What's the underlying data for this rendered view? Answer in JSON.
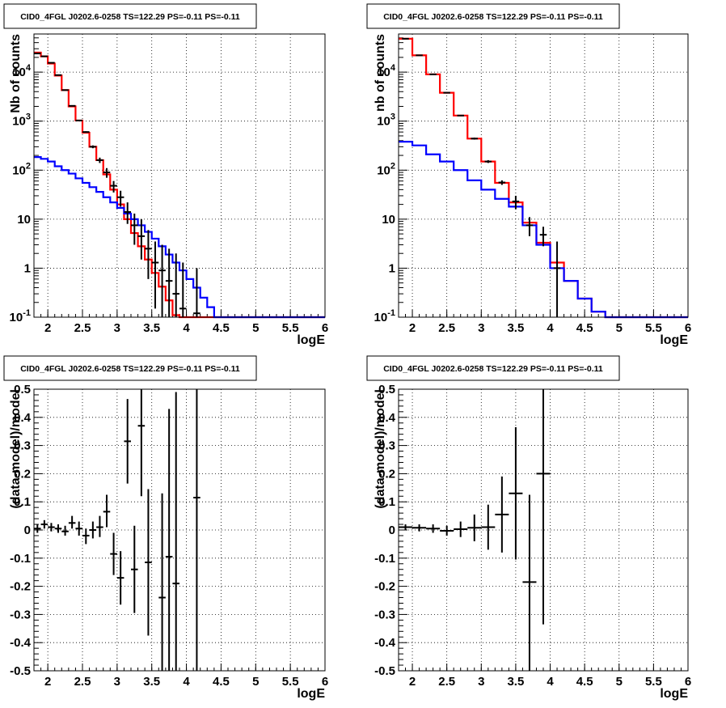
{
  "chart_data": [
    {
      "type": "line",
      "title": "CID0_4FGL J0202.6-0258 TS=122.29 PS=-0.11 PS=-0.11",
      "xlabel": "logE",
      "ylabel": "Nb of counts",
      "xlim": [
        1.8,
        6.0
      ],
      "ylim": [
        0.1,
        60000
      ],
      "yscale": "log",
      "grid": true,
      "x_ticks": [
        "2",
        "2.5",
        "3",
        "3.5",
        "4",
        "4.5",
        "5",
        "5.5",
        "6"
      ],
      "y_ticks": [
        "10^-1",
        "1",
        "10",
        "10^2",
        "10^3",
        "10^4"
      ],
      "bin_edges": [
        1.8,
        1.9,
        2.0,
        2.1,
        2.2,
        2.3,
        2.4,
        2.5,
        2.6,
        2.7,
        2.8,
        2.9,
        3.0,
        3.1,
        3.2,
        3.3,
        3.4,
        3.5,
        3.6,
        3.7,
        3.8,
        3.9,
        4.0,
        4.1,
        4.2,
        4.3,
        4.4,
        4.5,
        4.6,
        4.7,
        4.8,
        4.9,
        5.0,
        5.1,
        5.2,
        5.3,
        5.4,
        5.5,
        5.6,
        5.7,
        5.8,
        5.9,
        6.0
      ],
      "series": [
        {
          "color": "#ff0000",
          "style": "step",
          "values": [
            25000,
            21000,
            15000,
            8500,
            4300,
            2000,
            1030,
            580,
            300,
            160,
            82,
            40,
            20,
            10,
            5.2,
            2.8,
            1.5,
            0.8,
            0.42,
            0.22,
            0.11,
            0.1,
            0.1,
            0.1,
            0.1,
            0.1,
            0.1,
            0.1,
            0.1,
            0.1,
            0.1,
            0.1,
            0.1,
            0.1,
            0.1,
            0.1,
            0.1,
            0.1,
            0.1,
            0.1,
            0.1,
            0.1
          ]
        },
        {
          "color": "#0000ff",
          "style": "step",
          "values": [
            185,
            170,
            150,
            120,
            100,
            85,
            68,
            55,
            45,
            36,
            28,
            22,
            17,
            13,
            10,
            7.5,
            5.5,
            4.0,
            2.8,
            1.9,
            1.3,
            0.9,
            0.6,
            0.4,
            0.25,
            0.16,
            0.1,
            0.1,
            0.1,
            0.1,
            0.1,
            0.1,
            0.1,
            0.1,
            0.1,
            0.1,
            0.1,
            0.1,
            0.1,
            0.1,
            0.1,
            0.1
          ]
        }
      ],
      "points": {
        "color": "#000000",
        "x": [
          1.85,
          1.95,
          2.05,
          2.15,
          2.25,
          2.35,
          2.45,
          2.55,
          2.65,
          2.75,
          2.85,
          2.95,
          3.05,
          3.15,
          3.25,
          3.35,
          3.45,
          3.55,
          3.65,
          3.75,
          3.85,
          3.95,
          4.15
        ],
        "y": [
          24000,
          21000,
          15500,
          8700,
          4300,
          2050,
          1030,
          600,
          300,
          160,
          90,
          48,
          28,
          14,
          7.5,
          4.5,
          2.5,
          1.3,
          0.9,
          0.55,
          0.3,
          0.15,
          0.12
        ],
        "ylo": [
          23700,
          20700,
          15300,
          8600,
          4250,
          2000,
          1000,
          580,
          280,
          140,
          70,
          35,
          18,
          8,
          3,
          1.5,
          0.6,
          0.15,
          0.1,
          0.1,
          0.1,
          0.1,
          0.1
        ],
        "yhi": [
          24300,
          21300,
          15700,
          8800,
          4350,
          2100,
          1060,
          620,
          320,
          180,
          110,
          60,
          38,
          22,
          13,
          10,
          6,
          3.5,
          3,
          2.5,
          2,
          1.3,
          1.0
        ]
      }
    },
    {
      "type": "line",
      "title": "CID0_4FGL J0202.6-0258 TS=122.29 PS=-0.11 PS=-0.11",
      "xlabel": "logE",
      "ylabel": "nb of counts",
      "xlim": [
        1.8,
        6.0
      ],
      "ylim": [
        0.1,
        60000
      ],
      "yscale": "log",
      "grid": true,
      "x_ticks": [
        "2",
        "2.5",
        "3",
        "3.5",
        "4",
        "4.5",
        "5",
        "5.5",
        "6"
      ],
      "y_ticks": [
        "10^-1",
        "1",
        "10",
        "10^2",
        "10^3",
        "10^4"
      ],
      "bin_edges": [
        1.8,
        2.0,
        2.2,
        2.4,
        2.6,
        2.8,
        3.0,
        3.2,
        3.4,
        3.6,
        3.8,
        4.0,
        4.2,
        4.4,
        4.6,
        4.8,
        5.0,
        5.2,
        5.4,
        5.6,
        5.8,
        6.0
      ],
      "series": [
        {
          "color": "#ff0000",
          "style": "step",
          "values": [
            48000,
            22000,
            9000,
            3800,
            1300,
            440,
            150,
            55,
            22,
            8.5,
            3.3,
            1.3,
            0.55,
            0.24,
            0.13,
            0.1,
            0.1,
            0.1,
            0.1,
            0.1,
            0.1
          ]
        },
        {
          "color": "#0000ff",
          "style": "step",
          "values": [
            380,
            320,
            210,
            150,
            100,
            62,
            40,
            26,
            18,
            7.5,
            3.0,
            1.0,
            0.55,
            0.24,
            0.13,
            0.1,
            0.1,
            0.1,
            0.1,
            0.1,
            0.1
          ]
        }
      ],
      "points": {
        "color": "#000000",
        "x": [
          1.9,
          2.1,
          2.3,
          2.5,
          2.7,
          2.9,
          3.1,
          3.3,
          3.5,
          3.7,
          3.9,
          4.1
        ],
        "y": [
          48000,
          22000,
          9000,
          3800,
          1300,
          440,
          150,
          56,
          23,
          7.5,
          4.8,
          1.0
        ],
        "ylo": [
          47700,
          21800,
          8900,
          3750,
          1270,
          420,
          140,
          50,
          16,
          4.5,
          2.8,
          0.1
        ],
        "yhi": [
          48300,
          22200,
          9100,
          3850,
          1330,
          460,
          160,
          62,
          30,
          11,
          7,
          3.5
        ]
      }
    },
    {
      "type": "scatter",
      "title": "CID0_4FGL J0202.6-0258 TS=122.29 PS=-0.11 PS=-0.11",
      "xlabel": "logE",
      "ylabel": "(data-model)/model",
      "xlim": [
        1.8,
        6.0
      ],
      "ylim": [
        -0.5,
        0.5
      ],
      "grid": true,
      "x_ticks": [
        "2",
        "2.5",
        "3",
        "3.5",
        "4",
        "4.5",
        "5",
        "5.5",
        "6"
      ],
      "y_ticks": [
        "-0.5",
        "-0.4",
        "-0.3",
        "-0.2",
        "-0.1",
        "0",
        "0.1",
        "0.2",
        "0.3",
        "0.4",
        "0.5"
      ],
      "points": {
        "color": "#000000",
        "x": [
          1.85,
          1.95,
          2.05,
          2.15,
          2.25,
          2.35,
          2.45,
          2.55,
          2.65,
          2.75,
          2.85,
          2.95,
          3.05,
          3.15,
          3.25,
          3.35,
          3.45,
          3.65,
          3.75,
          3.85,
          4.15
        ],
        "xerr": 0.05,
        "y": [
          0.005,
          0.02,
          0.01,
          0.005,
          -0.005,
          0.025,
          0.005,
          -0.02,
          0.0,
          0.01,
          0.065,
          -0.085,
          -0.17,
          0.315,
          -0.14,
          0.37,
          -0.115,
          -0.24,
          -0.095,
          -0.19,
          0.115
        ],
        "ylo": [
          -0.01,
          0.005,
          -0.005,
          -0.01,
          -0.02,
          0.005,
          -0.02,
          -0.05,
          -0.03,
          -0.025,
          0.01,
          -0.16,
          -0.265,
          0.165,
          -0.295,
          0.12,
          -0.375,
          -0.5,
          -0.5,
          -0.5,
          -0.5
        ],
        "yhi": [
          0.02,
          0.035,
          0.025,
          0.02,
          0.015,
          0.05,
          0.03,
          0.005,
          0.03,
          0.05,
          0.125,
          -0.01,
          -0.075,
          0.465,
          0.015,
          0.5,
          0.145,
          0.13,
          0.43,
          0.49,
          0.5
        ]
      }
    },
    {
      "type": "scatter",
      "title": "CID0_4FGL J0202.6-0258 TS=122.29 PS=-0.11 PS=-0.11",
      "xlabel": "logE",
      "ylabel": "(data-model)/model",
      "xlim": [
        1.8,
        6.0
      ],
      "ylim": [
        -0.5,
        0.5
      ],
      "grid": true,
      "x_ticks": [
        "2",
        "2.5",
        "3",
        "3.5",
        "4",
        "4.5",
        "5",
        "5.5",
        "6"
      ],
      "y_ticks": [
        "-0.5",
        "-0.4",
        "-0.3",
        "-0.2",
        "-0.1",
        "0",
        "0.1",
        "0.2",
        "0.3",
        "0.4",
        "0.5"
      ],
      "points": {
        "color": "#000000",
        "x": [
          1.9,
          2.1,
          2.3,
          2.5,
          2.7,
          2.9,
          3.1,
          3.3,
          3.5,
          3.7,
          3.9
        ],
        "xerr": 0.1,
        "y": [
          0.01,
          0.008,
          0.005,
          -0.003,
          0.003,
          0.008,
          0.01,
          0.055,
          0.13,
          -0.185,
          0.2
        ],
        "ylo": [
          0.0,
          -0.005,
          -0.01,
          -0.02,
          -0.025,
          -0.04,
          -0.07,
          -0.08,
          -0.105,
          -0.5,
          -0.335
        ],
        "yhi": [
          0.02,
          0.02,
          0.02,
          0.015,
          0.03,
          0.055,
          0.09,
          0.19,
          0.365,
          0.125,
          0.5
        ]
      }
    }
  ]
}
